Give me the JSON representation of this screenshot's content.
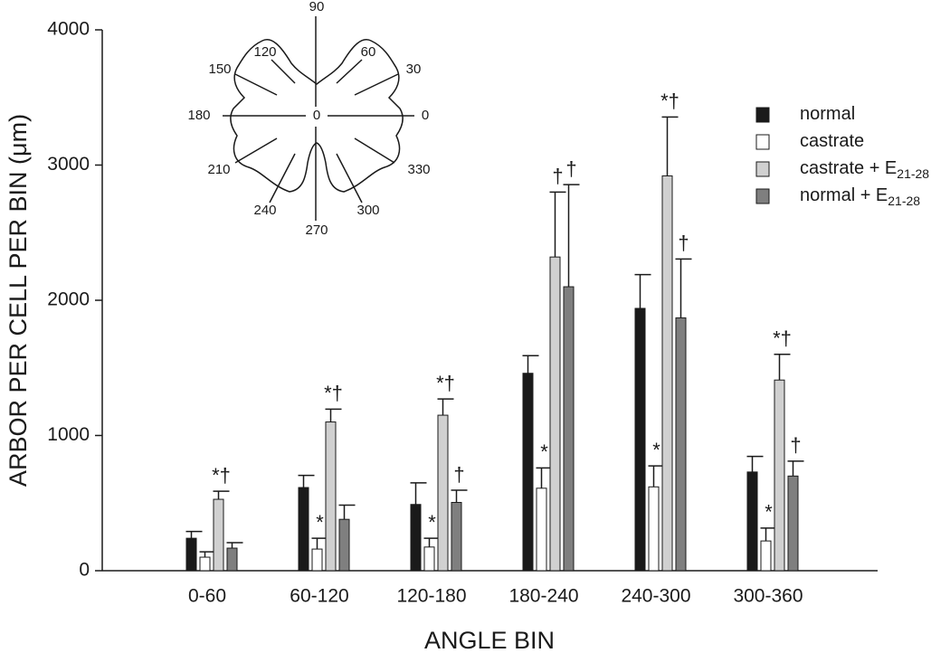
{
  "chart_data": {
    "type": "bar",
    "y_label": "ARBOR PER CELL PER BIN (μm)",
    "x_label": "ANGLE BIN",
    "categories": [
      "0-60",
      "60-120",
      "120-180",
      "180-240",
      "240-300",
      "300-360"
    ],
    "ylim": [
      0,
      4000
    ],
    "yticks": [
      0,
      1000,
      2000,
      3000,
      4000
    ],
    "series": [
      {
        "name": "normal",
        "color": "#1a1a1a",
        "values": [
          240,
          615,
          490,
          1460,
          1940,
          730
        ],
        "errors": [
          50,
          90,
          160,
          130,
          250,
          115
        ],
        "markers": [
          null,
          null,
          null,
          null,
          null,
          null
        ]
      },
      {
        "name": "castrate",
        "color": "#ffffff",
        "values": [
          100,
          160,
          175,
          610,
          620,
          220
        ],
        "errors": [
          40,
          80,
          65,
          150,
          155,
          95
        ],
        "markers": [
          null,
          "*",
          "*",
          "*",
          "*",
          "*"
        ]
      },
      {
        "name": "castrate + E",
        "subscript": "21-28",
        "color": "#d0d0d0",
        "values": [
          528,
          1100,
          1150,
          2320,
          2920,
          1410
        ],
        "errors": [
          60,
          95,
          120,
          480,
          435,
          190
        ],
        "markers": [
          "*†",
          "*†",
          "*†",
          "†",
          "*†",
          "*†"
        ]
      },
      {
        "name": "normal + E",
        "subscript": "21-28",
        "color": "#7f7f7f",
        "values": [
          167,
          380,
          505,
          2100,
          1870,
          700
        ],
        "errors": [
          40,
          105,
          90,
          755,
          435,
          110
        ],
        "markers": [
          null,
          null,
          "†",
          "†",
          "†",
          "†"
        ]
      }
    ]
  },
  "inset": {
    "labels": [
      "90",
      "60",
      "30",
      "0",
      "330",
      "300",
      "270",
      "240",
      "210",
      "180",
      "150",
      "120",
      "0"
    ]
  }
}
